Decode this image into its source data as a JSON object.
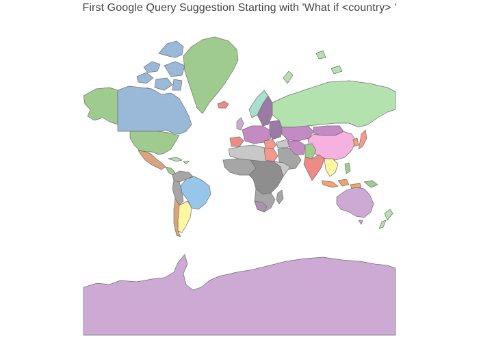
{
  "title": "First Google Query Suggestion Starting with 'What if <country> '",
  "map": {
    "projection": "mercator",
    "legend": "none",
    "colors": {
      "blue": "#9ab8d8",
      "green": "#9fcb8e",
      "light_green": "#b4e2af",
      "orange": "#d9a47e",
      "peach": "#f8c7a6",
      "light_blue": "#96c7ea",
      "yellow": "#fcf7a0",
      "purple": "#cdaad4",
      "dark_purple": "#9b7ba6",
      "pink": "#f5b1df",
      "red": "#ef8a86",
      "salmon": "#f4998c",
      "mint": "#a7e0cb",
      "magenta": "#c48ac3",
      "gray": "#a6a6a6",
      "dark_gray": "#8e8e8e",
      "light_gray": "#c8c8c8",
      "mauve": "#a992ac",
      "coral": "#f2a36e",
      "ocean": "#ffffff",
      "border": "#6f6f6f"
    }
  }
}
